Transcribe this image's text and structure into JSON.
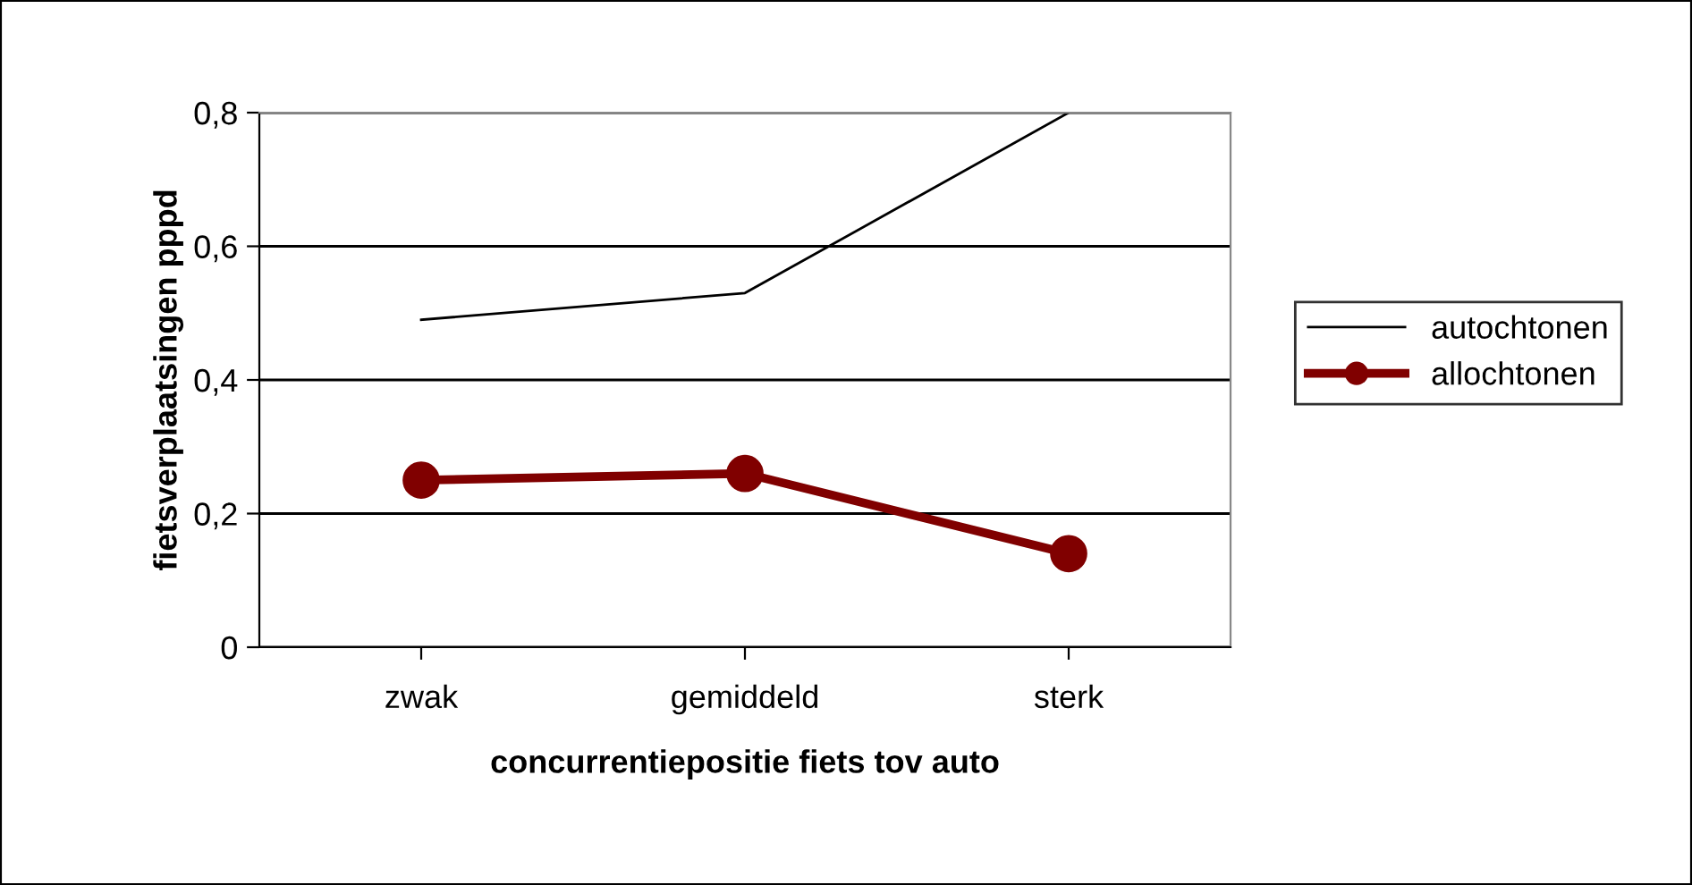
{
  "chart_data": {
    "type": "line",
    "xlabel": "concurrentiepositie fiets tov auto",
    "ylabel": "fietsverplaatsingen pppd",
    "categories": [
      "zwak",
      "gemiddeld",
      "sterk"
    ],
    "series": [
      {
        "name": "autochtonen",
        "color": "#000000",
        "values": [
          0.49,
          0.53,
          0.8
        ],
        "marker": "none"
      },
      {
        "name": "allochtonen",
        "color": "#800000",
        "values": [
          0.25,
          0.26,
          0.14
        ],
        "marker": "circle"
      }
    ],
    "ylim": [
      0,
      0.8
    ],
    "yticks": [
      0,
      {
        "value": 0.2,
        "label": "0,2"
      },
      {
        "value": 0.4,
        "label": "0,4"
      },
      {
        "value": 0.6,
        "label": "0,6"
      },
      {
        "value": 0.8,
        "label": "0,8"
      }
    ],
    "grid": "y",
    "legend": "right"
  }
}
